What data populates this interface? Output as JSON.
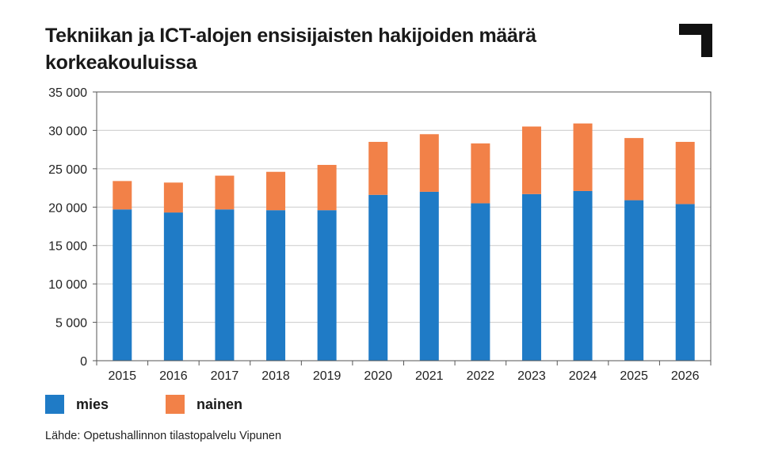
{
  "title": "Tekniikan ja ICT-alojen ensisijaisten hakijoiden määrä korkeakouluissa",
  "source": "Lähde: Opetushallinnon tilastopalvelu Vipunen",
  "colors": {
    "mies": "#1f7bc6",
    "nainen": "#f28148",
    "grid": "#cccccc",
    "axis": "#555555"
  },
  "legend": [
    {
      "name": "mies",
      "color": "#1f7bc6"
    },
    {
      "name": "nainen",
      "color": "#f28148"
    }
  ],
  "chart_data": {
    "type": "bar",
    "stacked": true,
    "title": "Tekniikan ja ICT-alojen ensisijaisten hakijoiden määrä korkeakouluissa",
    "xlabel": "",
    "ylabel": "",
    "ylim": [
      0,
      35000
    ],
    "yticks": [
      0,
      5000,
      10000,
      15000,
      20000,
      25000,
      30000,
      35000
    ],
    "ytick_labels": [
      "0",
      "5 000",
      "10 000",
      "15 000",
      "20 000",
      "25 000",
      "30 000",
      "35 000"
    ],
    "grid": true,
    "legend_position": "bottom-left",
    "categories": [
      "2015",
      "2016",
      "2017",
      "2018",
      "2019",
      "2020",
      "2021",
      "2022",
      "2023",
      "2024",
      "2025",
      "2026"
    ],
    "series": [
      {
        "name": "mies",
        "color": "#1f7bc6",
        "values": [
          19700,
          19300,
          19700,
          19600,
          19600,
          21600,
          22000,
          20500,
          21700,
          22100,
          20900,
          20400
        ]
      },
      {
        "name": "nainen",
        "color": "#f28148",
        "values": [
          3700,
          3900,
          4400,
          5000,
          5900,
          6900,
          7500,
          7800,
          8800,
          8800,
          8100,
          8100
        ]
      }
    ]
  }
}
